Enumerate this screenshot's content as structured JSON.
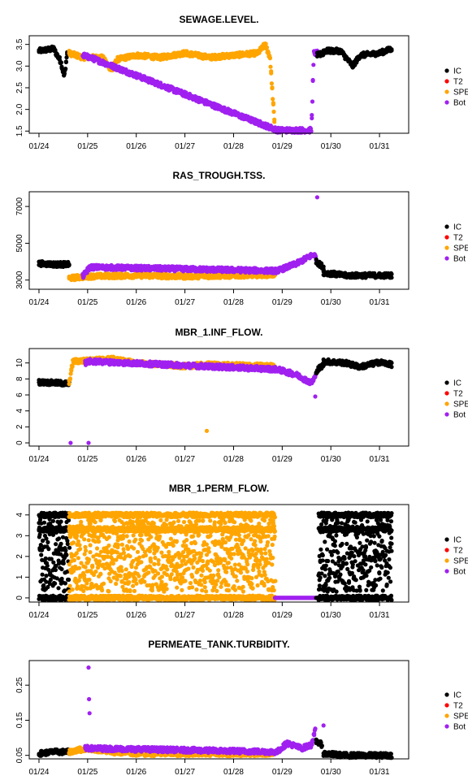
{
  "legend": [
    {
      "label": "IC",
      "color": "#000000"
    },
    {
      "label": "T2",
      "color": "#ff0000"
    },
    {
      "label": "SPE",
      "color": "#ffa500"
    },
    {
      "label": "Bot",
      "color": "#a020f0"
    }
  ],
  "x_ticks": [
    "01/24",
    "01/25",
    "01/26",
    "01/27",
    "01/28",
    "01/29",
    "01/30",
    "01/31"
  ],
  "chart_data": [
    {
      "type": "scatter",
      "title": "SEWAGE.LEVEL.",
      "xlabel": "",
      "ylabel": "",
      "xlim": [
        23.8,
        31.6
      ],
      "ylim": [
        1.45,
        3.7
      ],
      "y_ticks": [
        "1.5",
        "2.0",
        "2.5",
        "3.0",
        "3.5"
      ],
      "y_tick_values": [
        1.5,
        2.0,
        2.5,
        3.0,
        3.5
      ],
      "profile": {
        "IC": [
          [
            24.0,
            3.35
          ],
          [
            24.3,
            3.4
          ],
          [
            24.45,
            3.1
          ],
          [
            24.52,
            2.75
          ],
          [
            24.58,
            3.3
          ]
        ],
        "SPE": [
          [
            24.62,
            3.3
          ],
          [
            24.9,
            3.2
          ],
          [
            25.3,
            3.2
          ],
          [
            25.5,
            2.9
          ],
          [
            25.6,
            3.15
          ],
          [
            26.0,
            3.25
          ],
          [
            26.5,
            3.2
          ],
          [
            27.0,
            3.3
          ],
          [
            27.5,
            3.2
          ],
          [
            28.0,
            3.25
          ],
          [
            28.5,
            3.3
          ],
          [
            28.65,
            3.5
          ],
          [
            28.75,
            3.2
          ],
          [
            28.85,
            1.55
          ]
        ],
        "Bot": [
          [
            24.9,
            3.25
          ],
          [
            25.05,
            3.2
          ],
          [
            28.9,
            1.52
          ],
          [
            29.6,
            1.52
          ],
          [
            29.65,
            3.3
          ],
          [
            29.72,
            3.3
          ]
        ],
        "T2": [
          [
            29.72,
            3.25
          ],
          [
            29.85,
            3.3
          ]
        ],
        "IC2": [
          [
            29.85,
            3.35
          ],
          [
            30.2,
            3.35
          ],
          [
            30.45,
            3.0
          ],
          [
            30.6,
            3.25
          ],
          [
            31.0,
            3.3
          ],
          [
            31.25,
            3.4
          ]
        ]
      }
    },
    {
      "type": "scatter",
      "title": "RAS_TROUGH.TSS.",
      "xlabel": "",
      "ylabel": "",
      "xlim": [
        23.8,
        31.6
      ],
      "ylim": [
        2500,
        7800
      ],
      "y_ticks": [
        "3000",
        "5000",
        "7000"
      ],
      "y_tick_values": [
        3000,
        5000,
        7000
      ],
      "profile": {
        "IC": [
          [
            24.0,
            3900
          ],
          [
            24.35,
            3850
          ],
          [
            24.62,
            3850
          ]
        ],
        "SPE": [
          [
            24.62,
            3100
          ],
          [
            25.0,
            3200
          ],
          [
            26.0,
            3250
          ],
          [
            27.0,
            3200
          ],
          [
            28.0,
            3250
          ],
          [
            28.85,
            3300
          ]
        ],
        "Bot": [
          [
            24.9,
            3200
          ],
          [
            25.05,
            3700
          ],
          [
            28.9,
            3500
          ],
          [
            29.3,
            3900
          ],
          [
            29.65,
            4400
          ],
          [
            29.7,
            4200
          ]
        ],
        "T2": [
          [
            29.7,
            4000
          ],
          [
            29.85,
            3700
          ]
        ],
        "IC2": [
          [
            29.85,
            3400
          ],
          [
            30.3,
            3250
          ],
          [
            31.0,
            3250
          ],
          [
            31.25,
            3250
          ]
        ]
      },
      "outliers": [
        {
          "x": 29.72,
          "y": 7500,
          "color": "#a020f0"
        }
      ]
    },
    {
      "type": "scatter",
      "title": "MBR_1.INF_FLOW.",
      "xlabel": "",
      "ylabel": "",
      "xlim": [
        23.8,
        31.6
      ],
      "ylim": [
        -0.4,
        11.8
      ],
      "y_ticks": [
        "0",
        "2",
        "4",
        "6",
        "8",
        "10"
      ],
      "y_tick_values": [
        0,
        2,
        4,
        6,
        8,
        10
      ],
      "profile": {
        "IC": [
          [
            24.0,
            7.6
          ],
          [
            24.35,
            7.5
          ],
          [
            24.62,
            7.4
          ]
        ],
        "SPE": [
          [
            24.62,
            7.5
          ],
          [
            24.7,
            10.2
          ],
          [
            25.0,
            10.3
          ],
          [
            25.5,
            10.5
          ],
          [
            26.0,
            10.0
          ],
          [
            26.5,
            9.8
          ],
          [
            27.0,
            9.6
          ],
          [
            27.5,
            9.8
          ],
          [
            28.0,
            9.7
          ],
          [
            28.85,
            9.6
          ]
        ],
        "Bot": [
          [
            24.95,
            10.0
          ],
          [
            25.05,
            10.2
          ],
          [
            28.9,
            9.2
          ],
          [
            29.3,
            8.5
          ],
          [
            29.6,
            7.5
          ],
          [
            29.7,
            8.5
          ]
        ],
        "T2": [
          [
            29.7,
            9.0
          ],
          [
            29.85,
            9.8
          ]
        ],
        "IC2": [
          [
            29.85,
            10.2
          ],
          [
            30.3,
            10.0
          ],
          [
            30.6,
            9.5
          ],
          [
            31.0,
            10.1
          ],
          [
            31.25,
            9.8
          ]
        ]
      },
      "outliers": [
        {
          "x": 24.65,
          "y": 0.0,
          "color": "#a020f0"
        },
        {
          "x": 25.02,
          "y": 0.0,
          "color": "#a020f0"
        },
        {
          "x": 27.45,
          "y": 1.5,
          "color": "#ffa500"
        },
        {
          "x": 29.68,
          "y": 5.8,
          "color": "#a020f0"
        }
      ]
    },
    {
      "type": "scatter",
      "title": "MBR_1.PERM_FLOW.",
      "xlabel": "",
      "ylabel": "",
      "xlim": [
        23.8,
        31.6
      ],
      "ylim": [
        -0.2,
        4.5
      ],
      "y_ticks": [
        "0",
        "1",
        "2",
        "3",
        "4"
      ],
      "y_tick_values": [
        0,
        1,
        2,
        3,
        4
      ],
      "levels": [
        4.0,
        3.3,
        0.0
      ],
      "segments": [
        {
          "series": "IC",
          "start": 24.0,
          "end": 24.62
        },
        {
          "series": "SPE",
          "start": 24.62,
          "end": 28.85
        },
        {
          "series": "IC",
          "start": 29.75,
          "end": 31.25
        }
      ],
      "flat": [
        {
          "series": "Bot",
          "start": 28.85,
          "end": 29.7,
          "y": 0.0
        },
        {
          "series": "T2",
          "start": 29.7,
          "end": 29.8,
          "y": 0.0
        }
      ]
    },
    {
      "type": "scatter",
      "title": "PERMEATE_TANK.TURBIDITY.",
      "xlabel": "",
      "ylabel": "",
      "xlim": [
        23.8,
        31.6
      ],
      "ylim": [
        0.04,
        0.32
      ],
      "y_ticks": [
        "0.05",
        "0.15",
        "0.25"
      ],
      "y_tick_values": [
        0.05,
        0.15,
        0.25
      ],
      "profile": {
        "IC": [
          [
            24.0,
            0.055
          ],
          [
            24.3,
            0.06
          ],
          [
            24.62,
            0.06
          ]
        ],
        "SPE": [
          [
            24.62,
            0.06
          ],
          [
            25.0,
            0.07
          ],
          [
            25.5,
            0.06
          ],
          [
            26.0,
            0.055
          ],
          [
            27.0,
            0.055
          ],
          [
            28.0,
            0.055
          ],
          [
            28.85,
            0.055
          ]
        ],
        "Bot": [
          [
            24.95,
            0.07
          ],
          [
            25.05,
            0.07
          ],
          [
            28.9,
            0.06
          ],
          [
            29.1,
            0.085
          ],
          [
            29.4,
            0.07
          ],
          [
            29.6,
            0.08
          ],
          [
            29.68,
            0.12
          ]
        ],
        "T2": [
          [
            29.7,
            0.09
          ],
          [
            29.82,
            0.08
          ]
        ],
        "IC2": [
          [
            29.85,
            0.055
          ],
          [
            30.3,
            0.05
          ],
          [
            31.0,
            0.05
          ],
          [
            31.25,
            0.05
          ]
        ]
      },
      "outliers": [
        {
          "x": 25.02,
          "y": 0.3,
          "color": "#a020f0"
        },
        {
          "x": 25.03,
          "y": 0.21,
          "color": "#a020f0"
        },
        {
          "x": 25.04,
          "y": 0.17,
          "color": "#a020f0"
        },
        {
          "x": 29.85,
          "y": 0.135,
          "color": "#a020f0"
        }
      ]
    }
  ]
}
